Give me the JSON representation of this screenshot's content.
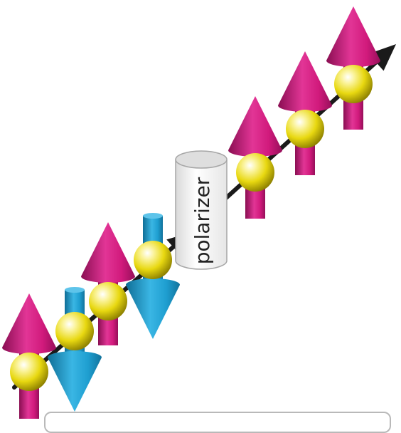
{
  "diagram": {
    "polarizer_label": "polarizer",
    "colors": {
      "spin_up": "#d11a7c",
      "spin_down": "#1e9ed0",
      "particle": "#e8d810",
      "beam": "#1a1a1a",
      "polarizer_fill": "#f2f2f2",
      "polarizer_edge": "#9a9a9a"
    },
    "incoming_spins": [
      "up",
      "down",
      "up",
      "down"
    ],
    "outgoing_spins": [
      "up",
      "up",
      "up"
    ]
  }
}
